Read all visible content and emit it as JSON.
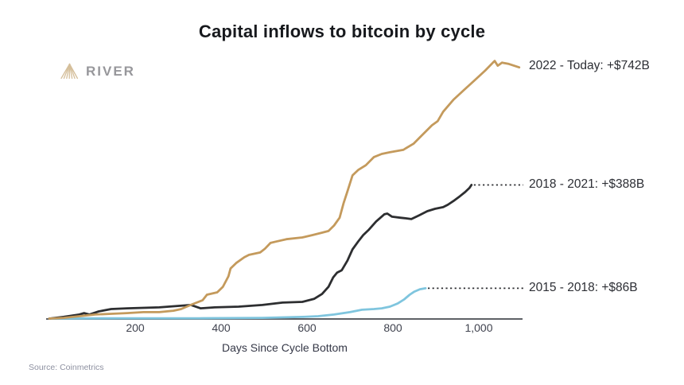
{
  "title": "Capital inflows to bitcoin by cycle",
  "logo": {
    "brand": "RIVER",
    "icon": "river-mountain-logo"
  },
  "source": "Source: Coinmetrics",
  "chart_data": {
    "type": "line",
    "title": "Capital inflows to bitcoin by cycle",
    "xlabel": "Days Since Cycle Bottom",
    "ylabel": "",
    "x_range": [
      0,
      1100
    ],
    "y_range_billions_usd": [
      0,
      760
    ],
    "grid": false,
    "legend_position": "right-end-labels",
    "axis_color": "#5e6166",
    "connector_color": "#2b2c30",
    "x_ticks": [
      {
        "value": 200,
        "label": "200"
      },
      {
        "value": 400,
        "label": "400"
      },
      {
        "value": 600,
        "label": "600"
      },
      {
        "value": 800,
        "label": "800"
      },
      {
        "value": 1000,
        "label": "1,000"
      }
    ],
    "series": [
      {
        "name": "2022 - Today",
        "label": "2022 - Today: +$742B",
        "final_value_billions": 742,
        "color": "#c49a5c",
        "connector_dotted": false,
        "points": [
          [
            0,
            0
          ],
          [
            33,
            2
          ],
          [
            70,
            7
          ],
          [
            107,
            12
          ],
          [
            144,
            14
          ],
          [
            181,
            16
          ],
          [
            219,
            19
          ],
          [
            256,
            19
          ],
          [
            289,
            23
          ],
          [
            307,
            28
          ],
          [
            333,
            42
          ],
          [
            357,
            54
          ],
          [
            367,
            70
          ],
          [
            391,
            77
          ],
          [
            404,
            93
          ],
          [
            417,
            124
          ],
          [
            422,
            147
          ],
          [
            435,
            163
          ],
          [
            454,
            180
          ],
          [
            465,
            187
          ],
          [
            491,
            194
          ],
          [
            502,
            205
          ],
          [
            515,
            222
          ],
          [
            528,
            226
          ],
          [
            552,
            233
          ],
          [
            589,
            238
          ],
          [
            613,
            245
          ],
          [
            635,
            252
          ],
          [
            650,
            257
          ],
          [
            663,
            273
          ],
          [
            676,
            296
          ],
          [
            685,
            338
          ],
          [
            694,
            373
          ],
          [
            706,
            420
          ],
          [
            719,
            436
          ],
          [
            737,
            450
          ],
          [
            756,
            474
          ],
          [
            774,
            483
          ],
          [
            793,
            488
          ],
          [
            824,
            495
          ],
          [
            848,
            513
          ],
          [
            867,
            537
          ],
          [
            891,
            567
          ],
          [
            904,
            579
          ],
          [
            917,
            607
          ],
          [
            941,
            642
          ],
          [
            965,
            670
          ],
          [
            991,
            700
          ],
          [
            1015,
            728
          ],
          [
            1033,
            751
          ],
          [
            1037,
            756
          ],
          [
            1044,
            742
          ],
          [
            1054,
            751
          ],
          [
            1070,
            747
          ],
          [
            1094,
            737
          ]
        ]
      },
      {
        "name": "2018 - 2021",
        "label": "2018 - 2021: +$388B",
        "final_value_billions": 388,
        "color": "#2d2e30",
        "connector_dotted": true,
        "points": [
          [
            0,
            0
          ],
          [
            33,
            5
          ],
          [
            70,
            12
          ],
          [
            81,
            16
          ],
          [
            93,
            12
          ],
          [
            115,
            21
          ],
          [
            144,
            28
          ],
          [
            181,
            30
          ],
          [
            256,
            33
          ],
          [
            330,
            40
          ],
          [
            352,
            30
          ],
          [
            385,
            33
          ],
          [
            441,
            35
          ],
          [
            496,
            40
          ],
          [
            543,
            47
          ],
          [
            589,
            49
          ],
          [
            617,
            58
          ],
          [
            635,
            72
          ],
          [
            650,
            93
          ],
          [
            661,
            121
          ],
          [
            670,
            135
          ],
          [
            681,
            142
          ],
          [
            694,
            170
          ],
          [
            706,
            203
          ],
          [
            719,
            226
          ],
          [
            731,
            245
          ],
          [
            744,
            261
          ],
          [
            761,
            285
          ],
          [
            780,
            306
          ],
          [
            787,
            308
          ],
          [
            798,
            299
          ],
          [
            817,
            296
          ],
          [
            831,
            294
          ],
          [
            843,
            292
          ],
          [
            861,
            303
          ],
          [
            880,
            315
          ],
          [
            898,
            322
          ],
          [
            917,
            327
          ],
          [
            928,
            334
          ],
          [
            941,
            345
          ],
          [
            956,
            359
          ],
          [
            968,
            371
          ],
          [
            978,
            383
          ],
          [
            983,
            392
          ]
        ]
      },
      {
        "name": "2015 - 2018",
        "label": "2015 - 2018: +$86B",
        "final_value_billions": 86,
        "color": "#7fc5de",
        "connector_dotted": true,
        "points": [
          [
            0,
            0
          ],
          [
            163,
            1
          ],
          [
            348,
            1
          ],
          [
            496,
            2
          ],
          [
            589,
            5
          ],
          [
            626,
            7
          ],
          [
            663,
            12
          ],
          [
            700,
            19
          ],
          [
            728,
            26
          ],
          [
            756,
            28
          ],
          [
            774,
            30
          ],
          [
            793,
            35
          ],
          [
            811,
            44
          ],
          [
            826,
            56
          ],
          [
            839,
            70
          ],
          [
            850,
            79
          ],
          [
            863,
            86
          ],
          [
            876,
            89
          ]
        ]
      }
    ]
  }
}
